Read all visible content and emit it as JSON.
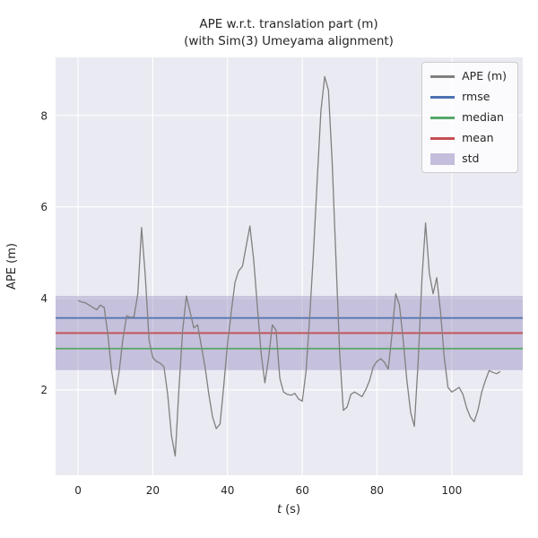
{
  "chart_data": {
    "type": "line",
    "title": "APE w.r.t. translation part (m)\n(with Sim(3) Umeyama alignment)",
    "title_line1": "APE w.r.t. translation part (m)",
    "title_line2": "(with Sim(3) Umeyama alignment)",
    "xlabel": "t (s)",
    "xlabel_var": "t",
    "xlabel_unit": "(s)",
    "ylabel": "APE (m)",
    "xlim": [
      -6,
      119
    ],
    "ylim": [
      0.13,
      9.27
    ],
    "xticks": [
      0,
      20,
      40,
      60,
      80,
      100
    ],
    "yticks": [
      2,
      4,
      6,
      8
    ],
    "grid": true,
    "legend_position": "upper right",
    "colors": {
      "axes_background": "#eaeaf2",
      "grid": "#ffffff",
      "ape_line": "#808080",
      "rmse": "#4c72b0",
      "median": "#55a868",
      "mean": "#c44e52",
      "std": "#8172b2",
      "text": "#262626"
    },
    "stats": {
      "rmse": 3.57,
      "mean": 3.24,
      "median": 2.9,
      "std": 0.81
    },
    "series": [
      {
        "name": "APE (m)",
        "type": "line",
        "color": "#808080",
        "x": [
          0,
          1,
          2,
          3,
          4,
          5,
          6,
          7,
          8,
          9,
          10,
          11,
          12,
          13,
          14,
          15,
          16,
          17,
          18,
          19,
          20,
          21,
          22,
          23,
          24,
          25,
          26,
          27,
          28,
          29,
          30,
          31,
          32,
          33,
          34,
          35,
          36,
          37,
          38,
          39,
          40,
          41,
          42,
          43,
          44,
          45,
          46,
          47,
          48,
          49,
          50,
          51,
          52,
          53,
          54,
          55,
          56,
          57,
          58,
          59,
          60,
          61,
          62,
          63,
          64,
          65,
          66,
          67,
          68,
          69,
          70,
          71,
          72,
          73,
          74,
          75,
          76,
          77,
          78,
          79,
          80,
          81,
          82,
          83,
          84,
          85,
          86,
          87,
          88,
          89,
          90,
          91,
          92,
          93,
          94,
          95,
          96,
          97,
          98,
          99,
          100,
          101,
          102,
          103,
          104,
          105,
          106,
          107,
          108,
          109,
          110,
          111,
          112,
          113
        ],
        "y": [
          3.95,
          3.92,
          3.9,
          3.85,
          3.8,
          3.75,
          3.85,
          3.8,
          3.2,
          2.4,
          1.9,
          2.4,
          3.1,
          3.62,
          3.58,
          3.6,
          4.1,
          5.55,
          4.5,
          3.1,
          2.7,
          2.62,
          2.58,
          2.5,
          1.9,
          1.0,
          0.55,
          2.0,
          3.3,
          4.05,
          3.7,
          3.35,
          3.42,
          2.95,
          2.5,
          1.9,
          1.4,
          1.15,
          1.25,
          2.1,
          3.0,
          3.7,
          4.35,
          4.6,
          4.7,
          5.15,
          5.58,
          4.85,
          3.8,
          2.8,
          2.15,
          2.7,
          3.42,
          3.3,
          2.25,
          1.95,
          1.9,
          1.88,
          1.92,
          1.8,
          1.75,
          2.4,
          3.6,
          5.0,
          6.6,
          8.1,
          8.85,
          8.55,
          7.0,
          4.9,
          2.8,
          1.55,
          1.62,
          1.9,
          1.95,
          1.9,
          1.85,
          2.0,
          2.2,
          2.5,
          2.62,
          2.68,
          2.6,
          2.45,
          3.2,
          4.1,
          3.85,
          3.1,
          2.2,
          1.5,
          1.2,
          2.6,
          4.4,
          5.65,
          4.55,
          4.1,
          4.45,
          3.7,
          2.7,
          2.05,
          1.95,
          2.0,
          2.05,
          1.9,
          1.6,
          1.4,
          1.3,
          1.55,
          1.95,
          2.2,
          2.42,
          2.38,
          2.35,
          2.4
        ]
      },
      {
        "name": "rmse",
        "type": "hline",
        "color": "#4c72b0",
        "value": 3.57
      },
      {
        "name": "median",
        "type": "hline",
        "color": "#55a868",
        "value": 2.9
      },
      {
        "name": "mean",
        "type": "hline",
        "color": "#c44e52",
        "value": 3.24
      },
      {
        "name": "std",
        "type": "band",
        "color": "#8172b2",
        "low": 2.43,
        "high": 4.05
      }
    ]
  }
}
